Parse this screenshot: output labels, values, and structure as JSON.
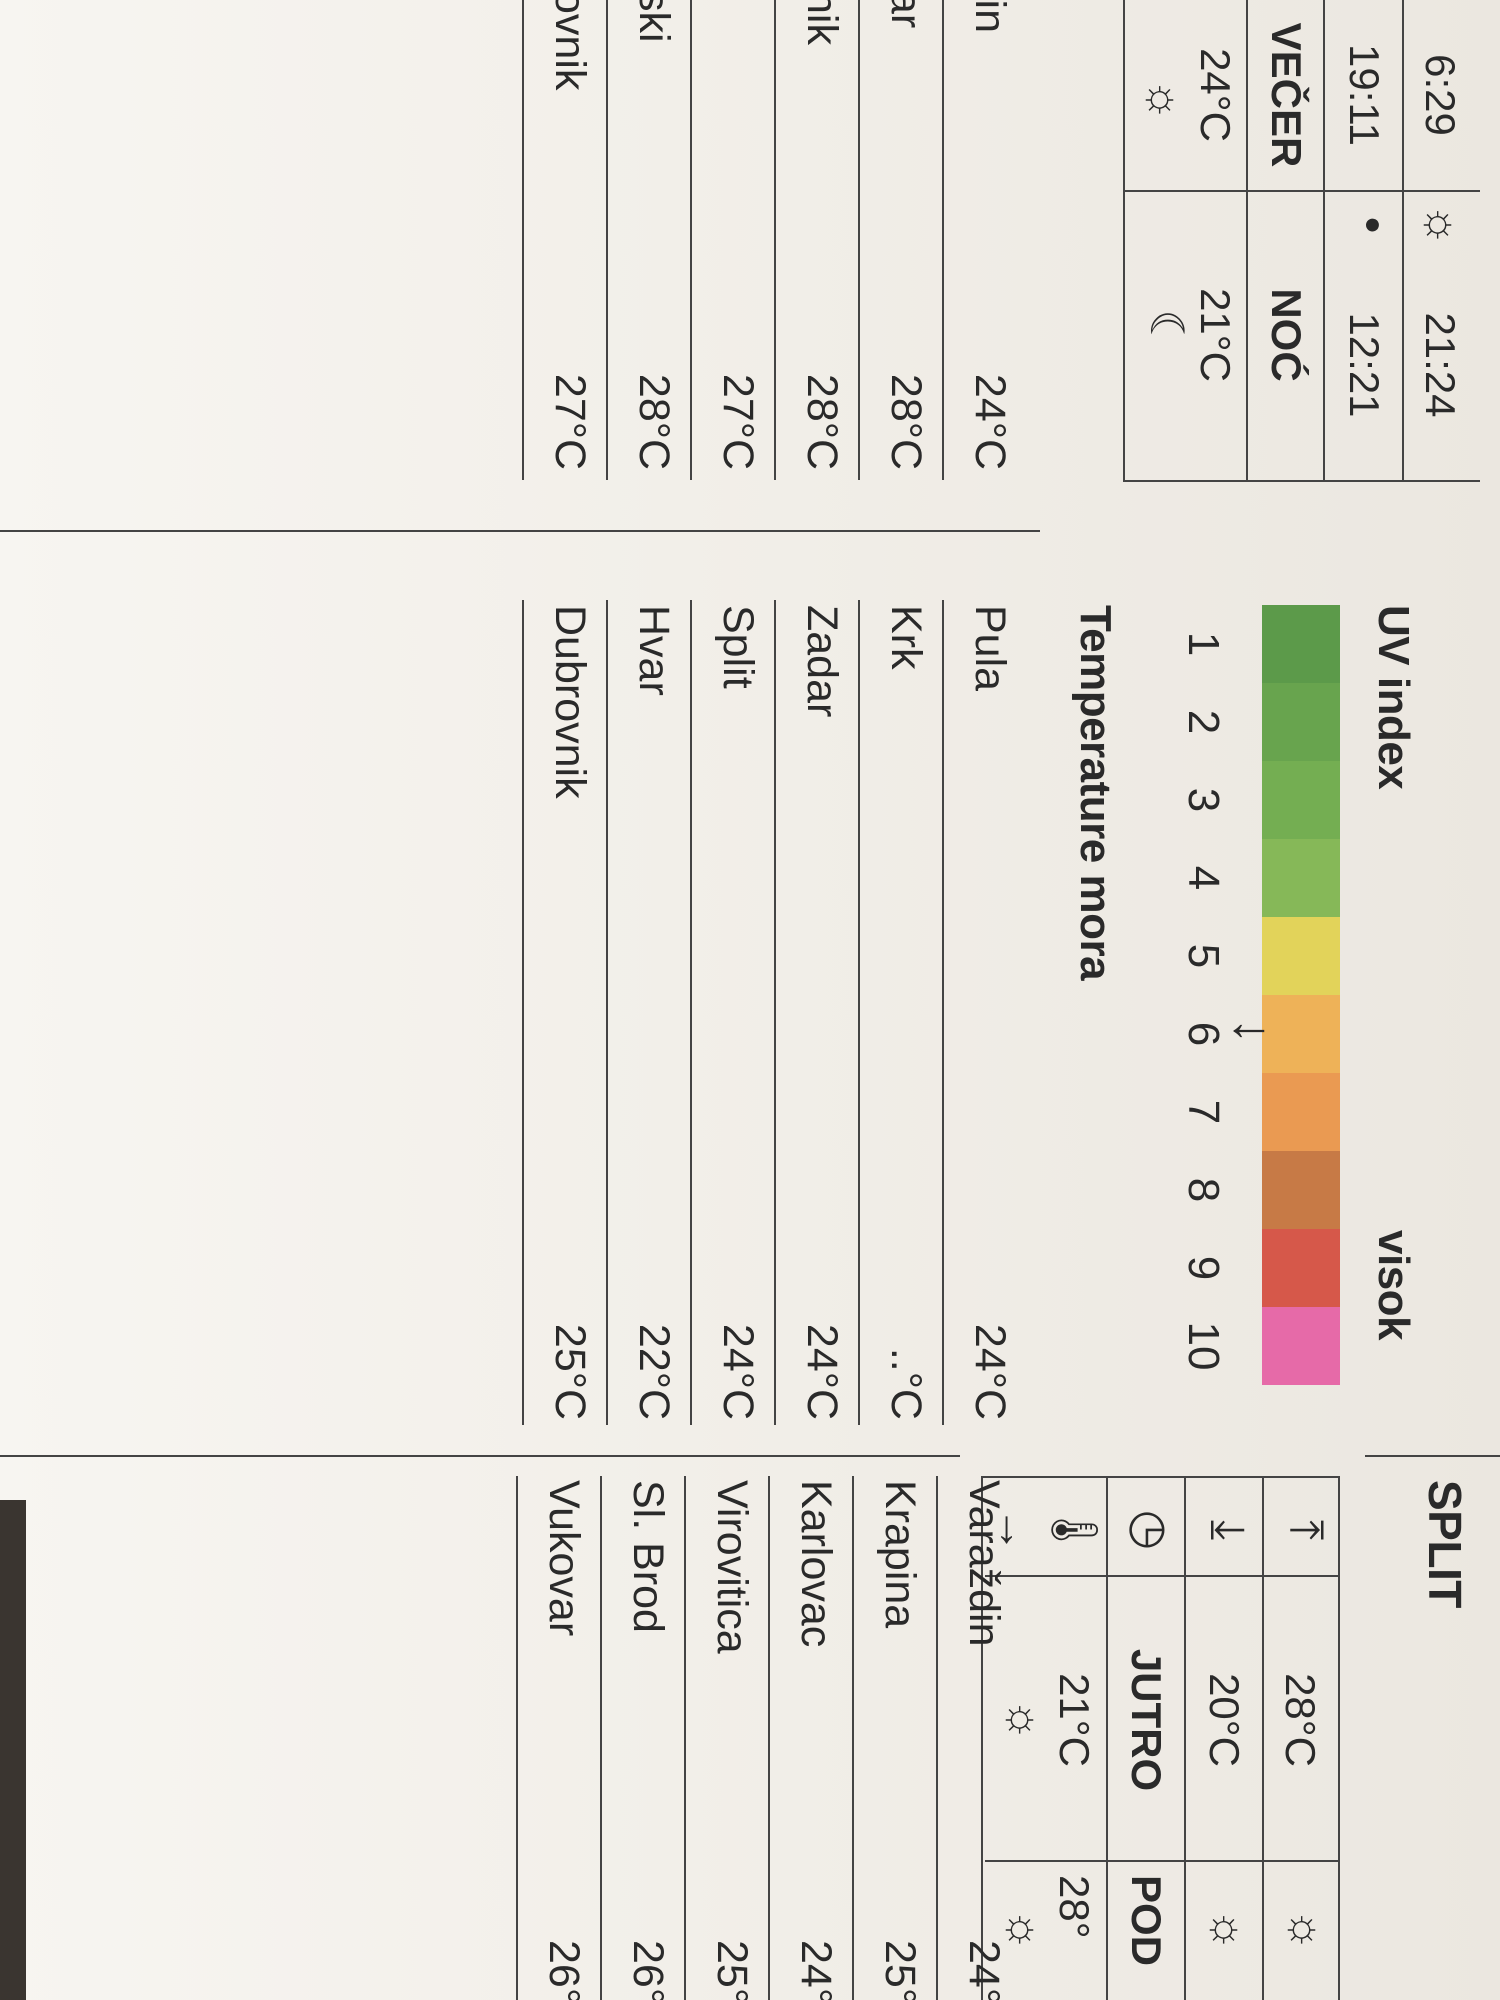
{
  "uv": {
    "title": "UV index",
    "level_label": "visok",
    "scale": [
      "1",
      "2",
      "3",
      "4",
      "5",
      "6",
      "7",
      "8",
      "9",
      "10"
    ],
    "level": 6,
    "colors": [
      "#5c9a4a",
      "#68a44e",
      "#74ae52",
      "#86b858",
      "#e2d35a",
      "#eeb258",
      "#ea9a52",
      "#c77a46",
      "#d6584a",
      "#e66aa8"
    ]
  },
  "sea": {
    "title": "Temperature mora",
    "rows": [
      {
        "city": "Pula",
        "temp": "24°C"
      },
      {
        "city": "Krk",
        "temp": "..°C"
      },
      {
        "city": "Zadar",
        "temp": "24°C"
      },
      {
        "city": "Split",
        "temp": "24°C"
      },
      {
        "city": "Hvar",
        "temp": "22°C"
      },
      {
        "city": "Dubrovnik",
        "temp": "25°C"
      }
    ]
  },
  "left_list": {
    "rows": [
      {
        "city": "lin",
        "temp": "24°C"
      },
      {
        "city": "ar",
        "temp": "28°C"
      },
      {
        "city": "nik",
        "temp": "28°C"
      },
      {
        "city": "",
        "temp": "27°C"
      },
      {
        "city": "ski",
        "temp": "28°C"
      },
      {
        "city": "ovnik",
        "temp": "27°C"
      }
    ]
  },
  "top_table": {
    "sunrise": "6:29",
    "sunset": "19:11",
    "sun_time": "21:24",
    "moon_time": "12:21",
    "col_vecer": "VEČER",
    "col_noc": "NOĆ",
    "temp_vecer": "24°C",
    "temp_noc": "21°C",
    "sun_icon": "sun-icon",
    "moon_icon": "crescent-moon-icon"
  },
  "split": {
    "title": "SPLIT",
    "max": "28°C",
    "min": "20°C",
    "col_jutro": "JUTRO",
    "col_pod": "POD",
    "temp_jutro": "21°C",
    "temp_pod": "28°",
    "up_icon": "arrow-up-icon",
    "down_icon": "arrow-down-icon",
    "clock_icon": "clock-icon",
    "thermo_icon": "thermometer-icon",
    "wind_icon": "arrow-right-icon"
  },
  "right_list": {
    "rows": [
      {
        "city": "Varaždin",
        "temp": "24°"
      },
      {
        "city": "Krapina",
        "temp": "25°"
      },
      {
        "city": "Karlovac",
        "temp": "24°"
      },
      {
        "city": "Virovitica",
        "temp": "25°"
      },
      {
        "city": "Sl. Brod",
        "temp": "26°"
      },
      {
        "city": "Vukovar",
        "temp": "26°"
      }
    ]
  }
}
